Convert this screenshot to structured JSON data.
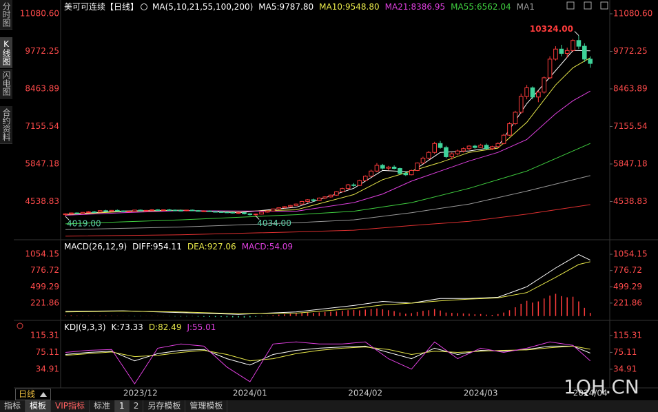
{
  "sidebar_tabs": [
    "分时图",
    "K线图",
    "闪电图",
    "合约资料"
  ],
  "period_label": "日线",
  "bottom_tabs": [
    "指标",
    "模板",
    "VIP指标",
    "标准",
    "1",
    "2",
    "另存模板",
    "管理模板"
  ],
  "watermark": "1QH.CN",
  "chart_data": [
    {
      "type": "candlestick",
      "title": "美可可连续【日线】",
      "indicator": "MA(5,10,21,55,100,200)",
      "up_color": "#ff3c3c",
      "down_color": "#3fd39a",
      "ylim": [
        3278,
        11080.6
      ],
      "yticks": [
        {
          "value": 11080.6,
          "label": "11080.60"
        },
        9772.25,
        8463.89,
        7155.54,
        5847.18,
        4538.83
      ],
      "categories": [
        null,
        null,
        null,
        null,
        null,
        null,
        null,
        null,
        null,
        null,
        null,
        null,
        null,
        "2023/12",
        null,
        null,
        null,
        null,
        null,
        null,
        null,
        null,
        null,
        null,
        null,
        null,
        null,
        null,
        null,
        null,
        null,
        null,
        "2024/01",
        null,
        null,
        null,
        null,
        null,
        null,
        null,
        null,
        null,
        null,
        null,
        null,
        null,
        null,
        null,
        null,
        null,
        null,
        null,
        "2024/02",
        null,
        null,
        null,
        null,
        null,
        null,
        null,
        null,
        null,
        null,
        null,
        null,
        null,
        null,
        null,
        null,
        null,
        null,
        null,
        "2024/03",
        null,
        null,
        null,
        null,
        null,
        null,
        null,
        null,
        null,
        null,
        null,
        null,
        null,
        null,
        null,
        null,
        null,
        null,
        "2024/04"
      ],
      "ohlc": [
        [
          4080,
          4130,
          4019,
          4110
        ],
        [
          4110,
          4150,
          4090,
          4140
        ],
        [
          4140,
          4160,
          4100,
          4120
        ],
        [
          4120,
          4170,
          4110,
          4160
        ],
        [
          4160,
          4200,
          4140,
          4180
        ],
        [
          4180,
          4210,
          4150,
          4170
        ],
        [
          4170,
          4230,
          4160,
          4220
        ],
        [
          4220,
          4250,
          4190,
          4200
        ],
        [
          4200,
          4240,
          4180,
          4230
        ],
        [
          4230,
          4260,
          4200,
          4210
        ],
        [
          4210,
          4230,
          4170,
          4190
        ],
        [
          4190,
          4220,
          4170,
          4200
        ],
        [
          4200,
          4250,
          4190,
          4240
        ],
        [
          4240,
          4260,
          4200,
          4210
        ],
        [
          4210,
          4240,
          4190,
          4230
        ],
        [
          4230,
          4270,
          4220,
          4250
        ],
        [
          4250,
          4270,
          4210,
          4230
        ],
        [
          4230,
          4260,
          4210,
          4250
        ],
        [
          4250,
          4280,
          4230,
          4240
        ],
        [
          4240,
          4260,
          4210,
          4230
        ],
        [
          4230,
          4260,
          4200,
          4220
        ],
        [
          4220,
          4250,
          4200,
          4240
        ],
        [
          4240,
          4260,
          4210,
          4220
        ],
        [
          4220,
          4240,
          4190,
          4200
        ],
        [
          4200,
          4230,
          4180,
          4210
        ],
        [
          4210,
          4230,
          4180,
          4190
        ],
        [
          4190,
          4210,
          4160,
          4180
        ],
        [
          4180,
          4200,
          4150,
          4170
        ],
        [
          4170,
          4190,
          4140,
          4160
        ],
        [
          4160,
          4180,
          4120,
          4140
        ],
        [
          4140,
          4170,
          4110,
          4150
        ],
        [
          4150,
          4160,
          4090,
          4110
        ],
        [
          4110,
          4130,
          4050,
          4080
        ],
        [
          4080,
          4120,
          4034,
          4100
        ],
        [
          4100,
          4180,
          4090,
          4170
        ],
        [
          4170,
          4230,
          4150,
          4210
        ],
        [
          4210,
          4290,
          4200,
          4280
        ],
        [
          4280,
          4330,
          4250,
          4320
        ],
        [
          4320,
          4380,
          4300,
          4360
        ],
        [
          4360,
          4420,
          4330,
          4400
        ],
        [
          4400,
          4470,
          4380,
          4450
        ],
        [
          4450,
          4560,
          4430,
          4540
        ],
        [
          4540,
          4620,
          4500,
          4600
        ],
        [
          4600,
          4640,
          4530,
          4570
        ],
        [
          4570,
          4680,
          4550,
          4660
        ],
        [
          4660,
          4720,
          4620,
          4700
        ],
        [
          4700,
          4780,
          4670,
          4760
        ],
        [
          4760,
          4900,
          4740,
          4880
        ],
        [
          4880,
          5020,
          4850,
          4990
        ],
        [
          4990,
          5150,
          4960,
          5120
        ],
        [
          5120,
          5180,
          5050,
          5100
        ],
        [
          5100,
          5300,
          5080,
          5270
        ],
        [
          5270,
          5450,
          5250,
          5420
        ],
        [
          5420,
          5650,
          5400,
          5600
        ],
        [
          5600,
          5880,
          5560,
          5800
        ],
        [
          5800,
          5850,
          5650,
          5700
        ],
        [
          5700,
          5780,
          5620,
          5740
        ],
        [
          5740,
          5800,
          5660,
          5690
        ],
        [
          5690,
          5720,
          5480,
          5520
        ],
        [
          5520,
          5600,
          5430,
          5470
        ],
        [
          5470,
          5650,
          5450,
          5620
        ],
        [
          5620,
          5900,
          5600,
          5880
        ],
        [
          5880,
          6100,
          5850,
          6050
        ],
        [
          6050,
          6300,
          6000,
          6250
        ],
        [
          6250,
          6620,
          6200,
          6560
        ],
        [
          6560,
          6650,
          6380,
          6420
        ],
        [
          6420,
          6480,
          6050,
          6100
        ],
        [
          6100,
          6250,
          6000,
          6200
        ],
        [
          6200,
          6350,
          6150,
          6300
        ],
        [
          6300,
          6420,
          6250,
          6380
        ],
        [
          6380,
          6500,
          6330,
          6470
        ],
        [
          6470,
          6520,
          6380,
          6420
        ],
        [
          6420,
          6550,
          6400,
          6500
        ],
        [
          6500,
          6560,
          6350,
          6380
        ],
        [
          6380,
          6480,
          6330,
          6450
        ],
        [
          6450,
          6600,
          6420,
          6560
        ],
        [
          6560,
          6900,
          6530,
          6850
        ],
        [
          6850,
          7300,
          6820,
          7250
        ],
        [
          7250,
          7700,
          7200,
          7650
        ],
        [
          7650,
          8300,
          7600,
          8200
        ],
        [
          8200,
          8600,
          8100,
          8500
        ],
        [
          8500,
          8550,
          8100,
          8180
        ],
        [
          8180,
          8400,
          8000,
          8350
        ],
        [
          8350,
          8900,
          8300,
          8850
        ],
        [
          8850,
          9600,
          8800,
          9500
        ],
        [
          9500,
          9950,
          9450,
          9850
        ],
        [
          9850,
          10000,
          9600,
          9700
        ],
        [
          9700,
          9900,
          9550,
          9800
        ],
        [
          9800,
          10200,
          9750,
          10150
        ],
        [
          10150,
          10324,
          9850,
          9950
        ],
        [
          9950,
          10050,
          9400,
          9500
        ],
        [
          9500,
          9600,
          9200,
          9350
        ]
      ],
      "high_marks": [
        {
          "value": 10324,
          "label": "10324.00"
        }
      ],
      "low_marks": [
        {
          "value": 4019,
          "label": "4019.00"
        },
        {
          "value": 4034,
          "label": "4034.00"
        }
      ],
      "series": [
        {
          "name": "MA5:9787.80",
          "color": "#ffffff",
          "x": [
            0,
            10,
            20,
            30,
            40,
            50,
            55,
            60,
            65,
            70,
            75,
            80,
            85,
            88,
            91
          ],
          "values": [
            4090,
            4210,
            4235,
            4150,
            4340,
            5000,
            5620,
            5570,
            6250,
            6300,
            6450,
            7950,
            9100,
            9800,
            9787.8
          ]
        },
        {
          "name": "MA10:9548.80",
          "color": "#e8e84a",
          "x": [
            0,
            10,
            20,
            30,
            40,
            50,
            55,
            60,
            65,
            70,
            75,
            80,
            85,
            88,
            91
          ],
          "values": [
            4080,
            4190,
            4230,
            4190,
            4250,
            4780,
            5300,
            5600,
            5900,
            6250,
            6400,
            7300,
            8600,
            9200,
            9548.8
          ]
        },
        {
          "name": "MA21:8386.95",
          "color": "#e040e0",
          "x": [
            0,
            10,
            20,
            30,
            40,
            50,
            55,
            60,
            65,
            70,
            75,
            80,
            85,
            88,
            91
          ],
          "values": [
            4060,
            4150,
            4220,
            4210,
            4200,
            4500,
            4800,
            5250,
            5600,
            5950,
            6250,
            6700,
            7600,
            8050,
            8386.95
          ]
        },
        {
          "name": "MA55:6562.04",
          "color": "#40d040",
          "x": [
            0,
            20,
            40,
            50,
            60,
            70,
            80,
            91
          ],
          "values": [
            3760,
            3900,
            4080,
            4200,
            4500,
            5000,
            5600,
            6562.04
          ]
        },
        {
          "name": "MA1",
          "color": "#999999",
          "x": [
            0,
            20,
            40,
            50,
            60,
            70,
            80,
            91
          ],
          "values": [
            3560,
            3650,
            3800,
            3900,
            4150,
            4450,
            4900,
            5440
          ]
        },
        {
          "color": "#e03030",
          "x": [
            0,
            20,
            40,
            50,
            60,
            70,
            80,
            91
          ],
          "values": [
            3330,
            3380,
            3480,
            3540,
            3700,
            3850,
            4100,
            4430
          ]
        }
      ]
    },
    {
      "type": "macd",
      "title": "MACD(26,12,9)",
      "ylim": [
        -38,
        1278
      ],
      "yticks": [
        1054.15,
        776.72,
        499.29,
        221.86
      ],
      "series": [
        {
          "name": "DIFF:954.11",
          "color": "#ffffff",
          "x": [
            0,
            10,
            20,
            30,
            40,
            50,
            55,
            60,
            65,
            70,
            75,
            80,
            85,
            89,
            91
          ],
          "values": [
            80,
            90,
            60,
            30,
            70,
            180,
            250,
            220,
            300,
            300,
            320,
            500,
            820,
            1050,
            954.11
          ]
        },
        {
          "name": "DEA:927.06",
          "color": "#e8e84a",
          "x": [
            0,
            10,
            20,
            30,
            40,
            50,
            55,
            60,
            65,
            70,
            75,
            80,
            85,
            89,
            91
          ],
          "values": [
            70,
            85,
            70,
            40,
            50,
            130,
            190,
            220,
            260,
            290,
            310,
            400,
            660,
            880,
            927.06
          ]
        }
      ],
      "histogram": {
        "name": "MACD:54.09",
        "color": "#e040e0",
        "up_color": "#ff3c3c",
        "down_color": "#3fd39a",
        "values": [
          10,
          12,
          8,
          6,
          5,
          4,
          6,
          8,
          5,
          3,
          2,
          -3,
          -5,
          -4,
          2,
          4,
          3,
          -2,
          -4,
          -6,
          -8,
          -6,
          -4,
          -10,
          -12,
          -14,
          -16,
          -15,
          -18,
          -20,
          -22,
          -25,
          -20,
          -12,
          -5,
          5,
          15,
          25,
          30,
          40,
          50,
          55,
          60,
          55,
          62,
          70,
          75,
          80,
          90,
          100,
          105,
          98,
          110,
          120,
          130,
          115,
          100,
          85,
          60,
          40,
          50,
          70,
          90,
          100,
          120,
          95,
          60,
          55,
          50,
          45,
          40,
          30,
          35,
          25,
          20,
          35,
          60,
          100,
          150,
          210,
          260,
          230,
          250,
          300,
          350,
          380,
          340,
          320,
          330,
          250,
          140,
          54.09
        ]
      }
    },
    {
      "type": "kdj",
      "title": "KDJ(9,3,3)",
      "ylim": [
        -8,
        146.5
      ],
      "yticks": [
        115.31,
        75.11,
        34.91
      ],
      "series": [
        {
          "name": "K:73.33",
          "color": "#ffffff",
          "x": [
            0,
            4,
            8,
            12,
            16,
            20,
            24,
            28,
            32,
            36,
            40,
            44,
            48,
            52,
            56,
            60,
            64,
            68,
            72,
            76,
            80,
            84,
            88,
            91
          ],
          "values": [
            70,
            75,
            78,
            55,
            72,
            80,
            82,
            60,
            45,
            70,
            80,
            85,
            88,
            90,
            75,
            60,
            85,
            70,
            80,
            78,
            82,
            90,
            90,
            73.33
          ]
        },
        {
          "name": "D:82.49",
          "color": "#e8e84a",
          "x": [
            0,
            4,
            8,
            12,
            16,
            20,
            24,
            28,
            32,
            36,
            40,
            44,
            48,
            52,
            56,
            60,
            64,
            68,
            72,
            76,
            80,
            84,
            88,
            91
          ],
          "values": [
            68,
            72,
            76,
            65,
            68,
            75,
            80,
            70,
            55,
            60,
            72,
            80,
            85,
            88,
            82,
            70,
            78,
            75,
            78,
            80,
            81,
            86,
            90,
            82.49
          ]
        },
        {
          "name": "J:55.01",
          "color": "#e040e0",
          "x": [
            0,
            4,
            8,
            12,
            16,
            20,
            24,
            28,
            32,
            36,
            40,
            44,
            48,
            52,
            56,
            60,
            64,
            68,
            72,
            76,
            80,
            84,
            88,
            91
          ],
          "values": [
            75,
            80,
            82,
            0,
            85,
            95,
            90,
            40,
            5,
            95,
            100,
            95,
            95,
            100,
            60,
            35,
            100,
            60,
            85,
            75,
            85,
            100,
            92,
            55.01
          ]
        }
      ]
    }
  ]
}
